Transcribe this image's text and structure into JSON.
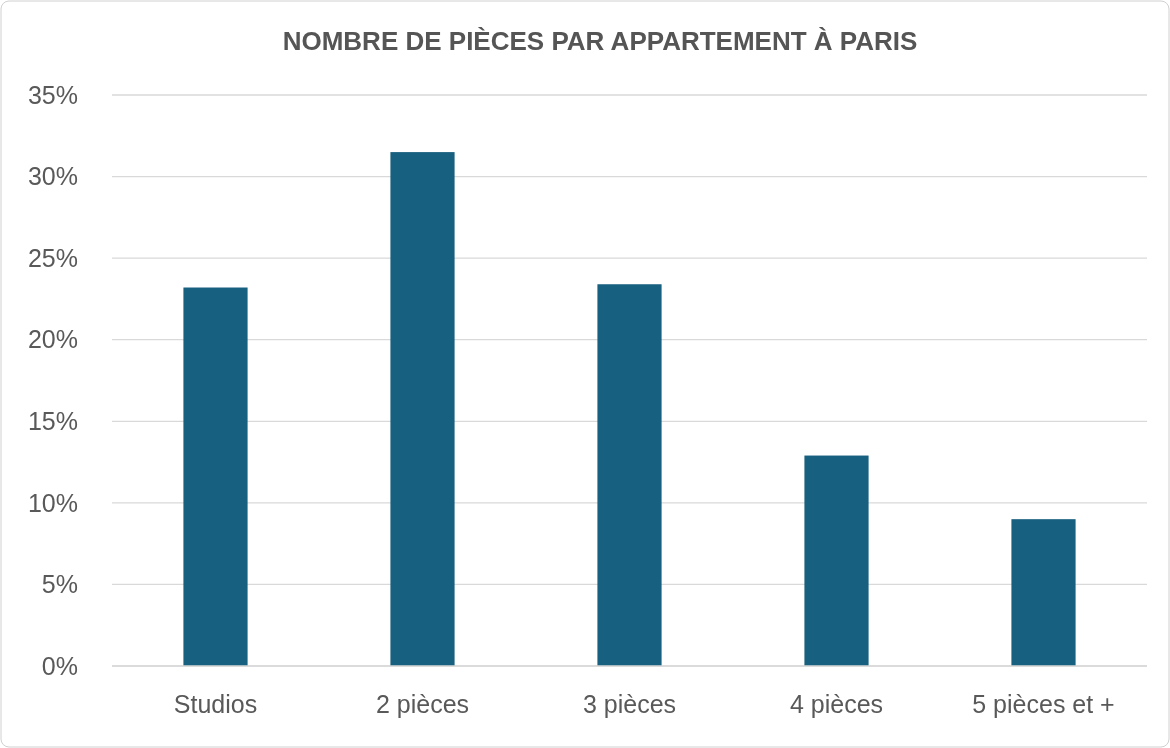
{
  "chart_data": {
    "type": "bar",
    "title": "NOMBRE DE PIÈCES PAR APPARTEMENT À PARIS",
    "categories": [
      "Studios",
      "2 pièces",
      "3 pièces",
      "4 pièces",
      "5 pièces et +"
    ],
    "values": [
      23.2,
      31.5,
      23.4,
      12.9,
      9.0
    ],
    "color": "#17607f",
    "ylim": [
      0,
      35
    ],
    "yticks": [
      {
        "value": 0,
        "label": "0%"
      },
      {
        "value": 5,
        "label": "5%"
      },
      {
        "value": 10,
        "label": "10%"
      },
      {
        "value": 15,
        "label": "15%"
      },
      {
        "value": 20,
        "label": "20%"
      },
      {
        "value": 25,
        "label": "25%"
      },
      {
        "value": 30,
        "label": "30%"
      },
      {
        "value": 35,
        "label": "35%"
      }
    ],
    "grid": "y"
  }
}
